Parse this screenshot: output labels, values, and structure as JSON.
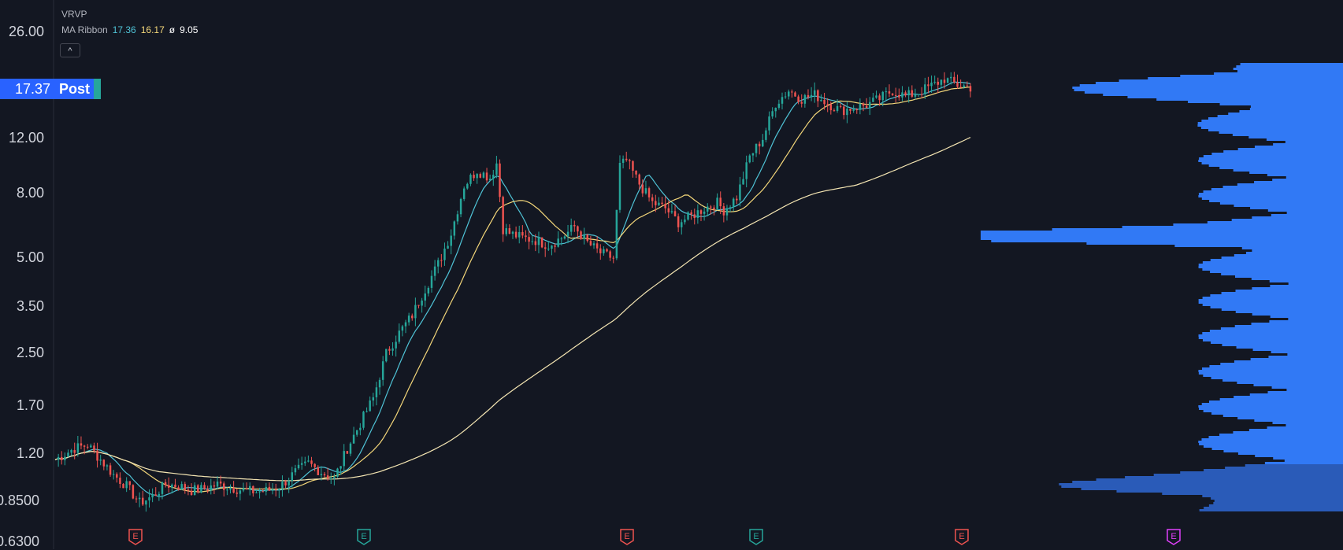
{
  "legend": {
    "symbol": "VRVP",
    "ma_name": "MA Ribbon",
    "ma1": "17.36",
    "ma2": "16.17",
    "ma_sep": "ø",
    "ma3": "9.05",
    "collapse": "^"
  },
  "price_tag": {
    "value": "17.37",
    "session": "Post"
  },
  "colors": {
    "background": "#131722",
    "up": "#26a69a",
    "down": "#ef5350",
    "ma_fast": "#4fc3d6",
    "ma_mid": "#f4d77a",
    "ma_slow": "#f5e6b3",
    "volume_profile": "#3179f5",
    "earnings_red": "#ef5350",
    "earnings_green": "#26a69a",
    "earnings_purple": "#e040fb"
  },
  "chart_data": {
    "type": "candlestick",
    "symbol": "VRVP",
    "yscale": "log",
    "ylim": [
      0.63,
      28
    ],
    "yticks": [
      "26.00",
      "17.37",
      "12.00",
      "8.00",
      "5.00",
      "3.50",
      "2.50",
      "1.70",
      "1.20",
      "0.8500",
      "0.6300"
    ],
    "ytick_values": [
      26,
      17.37,
      12,
      8,
      5,
      3.5,
      2.5,
      1.7,
      1.2,
      0.85,
      0.63
    ],
    "bars": 200,
    "close_path": [
      [
        0,
        1.15
      ],
      [
        6,
        1.25
      ],
      [
        10,
        1.28
      ],
      [
        14,
        1.15
      ],
      [
        18,
        1.03
      ],
      [
        22,
        0.95
      ],
      [
        26,
        0.84
      ],
      [
        30,
        0.88
      ],
      [
        34,
        0.96
      ],
      [
        38,
        0.95
      ],
      [
        42,
        0.92
      ],
      [
        46,
        0.93
      ],
      [
        50,
        0.96
      ],
      [
        54,
        0.94
      ],
      [
        58,
        0.92
      ],
      [
        62,
        0.91
      ],
      [
        66,
        0.92
      ],
      [
        70,
        0.96
      ],
      [
        74,
        1.05
      ],
      [
        78,
        1.12
      ],
      [
        82,
        1.05
      ],
      [
        86,
        1.0
      ],
      [
        90,
        1.25
      ],
      [
        94,
        1.5
      ],
      [
        98,
        1.8
      ],
      [
        102,
        2.5
      ],
      [
        106,
        2.9
      ],
      [
        110,
        3.3
      ],
      [
        114,
        4.0
      ],
      [
        118,
        4.8
      ],
      [
        122,
        6.0
      ],
      [
        126,
        8.5
      ],
      [
        130,
        9.5
      ],
      [
        134,
        9.0
      ],
      [
        136,
        10.0
      ],
      [
        138,
        6.2
      ],
      [
        140,
        6.0
      ],
      [
        144,
        5.8
      ],
      [
        148,
        5.7
      ],
      [
        152,
        5.5
      ],
      [
        156,
        5.8
      ],
      [
        160,
        6.3
      ],
      [
        164,
        5.6
      ],
      [
        168,
        5.2
      ],
      [
        172,
        5.0
      ],
      [
        174,
        9.8
      ],
      [
        176,
        10.2
      ],
      [
        180,
        8.6
      ],
      [
        184,
        7.5
      ],
      [
        188,
        7.2
      ],
      [
        192,
        6.5
      ],
      [
        196,
        6.8
      ],
      [
        200,
        7.2
      ],
      [
        204,
        7.5
      ],
      [
        206,
        7.1
      ],
      [
        210,
        7.8
      ],
      [
        214,
        10.5
      ],
      [
        218,
        12.0
      ],
      [
        222,
        15.5
      ],
      [
        226,
        17.0
      ],
      [
        230,
        16.0
      ],
      [
        234,
        16.5
      ],
      [
        238,
        15.5
      ],
      [
        242,
        14.7
      ],
      [
        246,
        15.0
      ],
      [
        250,
        15.3
      ],
      [
        254,
        16.0
      ],
      [
        258,
        17.0
      ],
      [
        262,
        16.3
      ],
      [
        266,
        16.8
      ],
      [
        270,
        17.6
      ],
      [
        274,
        18.5
      ],
      [
        278,
        17.7
      ],
      [
        282,
        17.4
      ]
    ],
    "ma_fast_last": 17.36,
    "ma_mid_last": 16.17,
    "ma_slow_last": 9.05,
    "volume_profile_peak_price": 5.9,
    "earnings_markers": [
      {
        "label": "E",
        "color": "red"
      },
      {
        "label": "E",
        "color": "green"
      },
      {
        "label": "E",
        "color": "red"
      },
      {
        "label": "E",
        "color": "green"
      },
      {
        "label": "E",
        "color": "red"
      },
      {
        "label": "E",
        "color": "purple"
      }
    ]
  }
}
